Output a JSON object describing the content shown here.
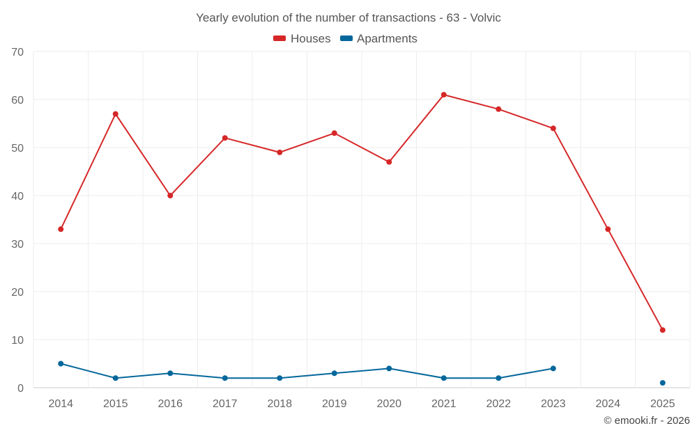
{
  "chart_data": {
    "type": "line",
    "title": "Yearly evolution of the number of transactions - 63 - Volvic",
    "categories": [
      "2014",
      "2015",
      "2016",
      "2017",
      "2018",
      "2019",
      "2020",
      "2021",
      "2022",
      "2023",
      "2024",
      "2025"
    ],
    "ylim": [
      0,
      70
    ],
    "yticks": [
      0,
      10,
      20,
      30,
      40,
      50,
      60,
      70
    ],
    "grid": true,
    "legend_position": "top-center",
    "series": [
      {
        "name": "Houses",
        "color": "#d62728",
        "values": [
          33,
          57,
          40,
          52,
          49,
          53,
          47,
          61,
          58,
          54,
          33,
          12
        ]
      },
      {
        "name": "Apartments",
        "color": "#04679b",
        "values": [
          5,
          2,
          3,
          2,
          2,
          3,
          4,
          2,
          2,
          4,
          null,
          1
        ]
      }
    ]
  },
  "credit": "© emooki.fr - 2026"
}
